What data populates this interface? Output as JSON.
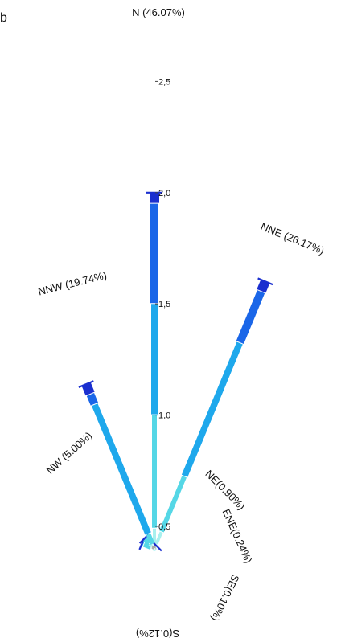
{
  "corner_letter": "b",
  "chart_data": {
    "type": "wind-rose",
    "radial_ticks": [
      {
        "value": 0.5,
        "label": "0,5"
      },
      {
        "value": 1.0,
        "label": "1,0"
      },
      {
        "value": 1.5,
        "label": "1,5"
      },
      {
        "value": 2.0,
        "label": "2,0"
      },
      {
        "value": 2.5,
        "label": "2,5"
      }
    ],
    "directions": [
      {
        "dir": "N",
        "angle": 0,
        "label": "N  (46.07%)",
        "speeds": [
          0.1,
          0.45,
          1.0,
          1.5,
          1.95,
          2.0
        ]
      },
      {
        "dir": "NNE",
        "angle": 22.5,
        "label": "NNE  (26.17%)",
        "speeds": [
          0.1,
          0.4,
          0.75,
          1.4,
          1.65,
          1.7
        ]
      },
      {
        "dir": "NE",
        "angle": 45,
        "label": "NE(0.90%)",
        "speeds": [
          0.03,
          0.05,
          0.07,
          0.08
        ]
      },
      {
        "dir": "ENE",
        "angle": 67.5,
        "label": "ENE(0.24%)",
        "speeds": []
      },
      {
        "dir": "E",
        "angle": 90,
        "label": "",
        "speeds": [
          0.02,
          0.03
        ]
      },
      {
        "dir": "ESE",
        "angle": 112.5,
        "label": "",
        "speeds": [
          0.02,
          0.03
        ]
      },
      {
        "dir": "SE",
        "angle": 135,
        "label": "SE(0.10%)",
        "speeds": [
          0.02,
          0.03
        ]
      },
      {
        "dir": "SSE",
        "angle": 157.5,
        "label": "",
        "speeds": [
          0.02,
          0.03
        ]
      },
      {
        "dir": "S",
        "angle": 180,
        "label": "S(0.12%)",
        "speeds": [
          0.02,
          0.03
        ]
      },
      {
        "dir": "SSW",
        "angle": 202.5,
        "label": "",
        "speeds": [
          0.02,
          0.03
        ]
      },
      {
        "dir": "SW",
        "angle": 225,
        "label": "",
        "speeds": [
          0.02,
          0.03
        ]
      },
      {
        "dir": "WSW",
        "angle": 247.5,
        "label": "",
        "speeds": [
          0.02,
          0.03
        ]
      },
      {
        "dir": "W",
        "angle": 270,
        "label": "",
        "speeds": [
          0.02,
          0.03
        ]
      },
      {
        "dir": "WNW",
        "angle": 292.5,
        "label": "",
        "speeds": [
          0.06,
          0.07,
          0.25,
          0.3
        ]
      },
      {
        "dir": "NW",
        "angle": 315,
        "label": "NW (5.00%)",
        "speeds": [
          0.07,
          0.15,
          0.3,
          0.32
        ]
      },
      {
        "dir": "NNW",
        "angle": 337.5,
        "label": "NNW  (19.74%)",
        "speeds": [
          0.07,
          0.1,
          0.35,
          1.1,
          1.15,
          1.2
        ]
      }
    ],
    "segment_colors": [
      "#aaaaaa",
      "#a8f0ee",
      "#55d7e6",
      "#1ea8ec",
      "#1a66e8",
      "#1a2fcf"
    ]
  }
}
